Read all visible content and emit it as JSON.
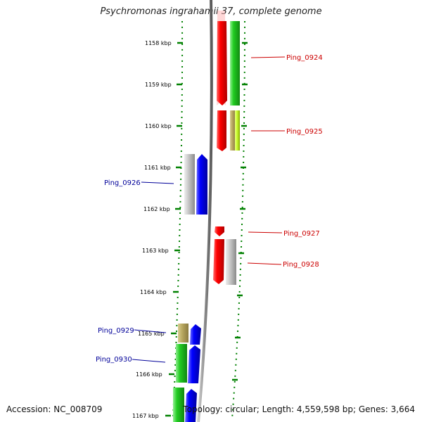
{
  "title": "Psychromonas ingrahamii 37, complete genome",
  "accession": "Accession: NC_008709",
  "topology": "Topology: circular; Length: 4,559,598 bp; Genes: 3,664",
  "kbp_ticks": [
    "1158 kbp",
    "1159 kbp",
    "1160 kbp",
    "1161 kbp",
    "1162 kbp",
    "1163 kbp",
    "1164 kbp",
    "1165 kbp",
    "1166 kbp",
    "1167 kbp"
  ],
  "gene_labels": [
    "Ping_0924",
    "Ping_0925",
    "Ping_0926",
    "Ping_0927",
    "Ping_0928",
    "Ping_0929",
    "Ping_0930"
  ],
  "colors": {
    "red_label": "#cc0000",
    "blue_label": "#000099",
    "tick_green": "#008000",
    "backbone": "#808080"
  }
}
